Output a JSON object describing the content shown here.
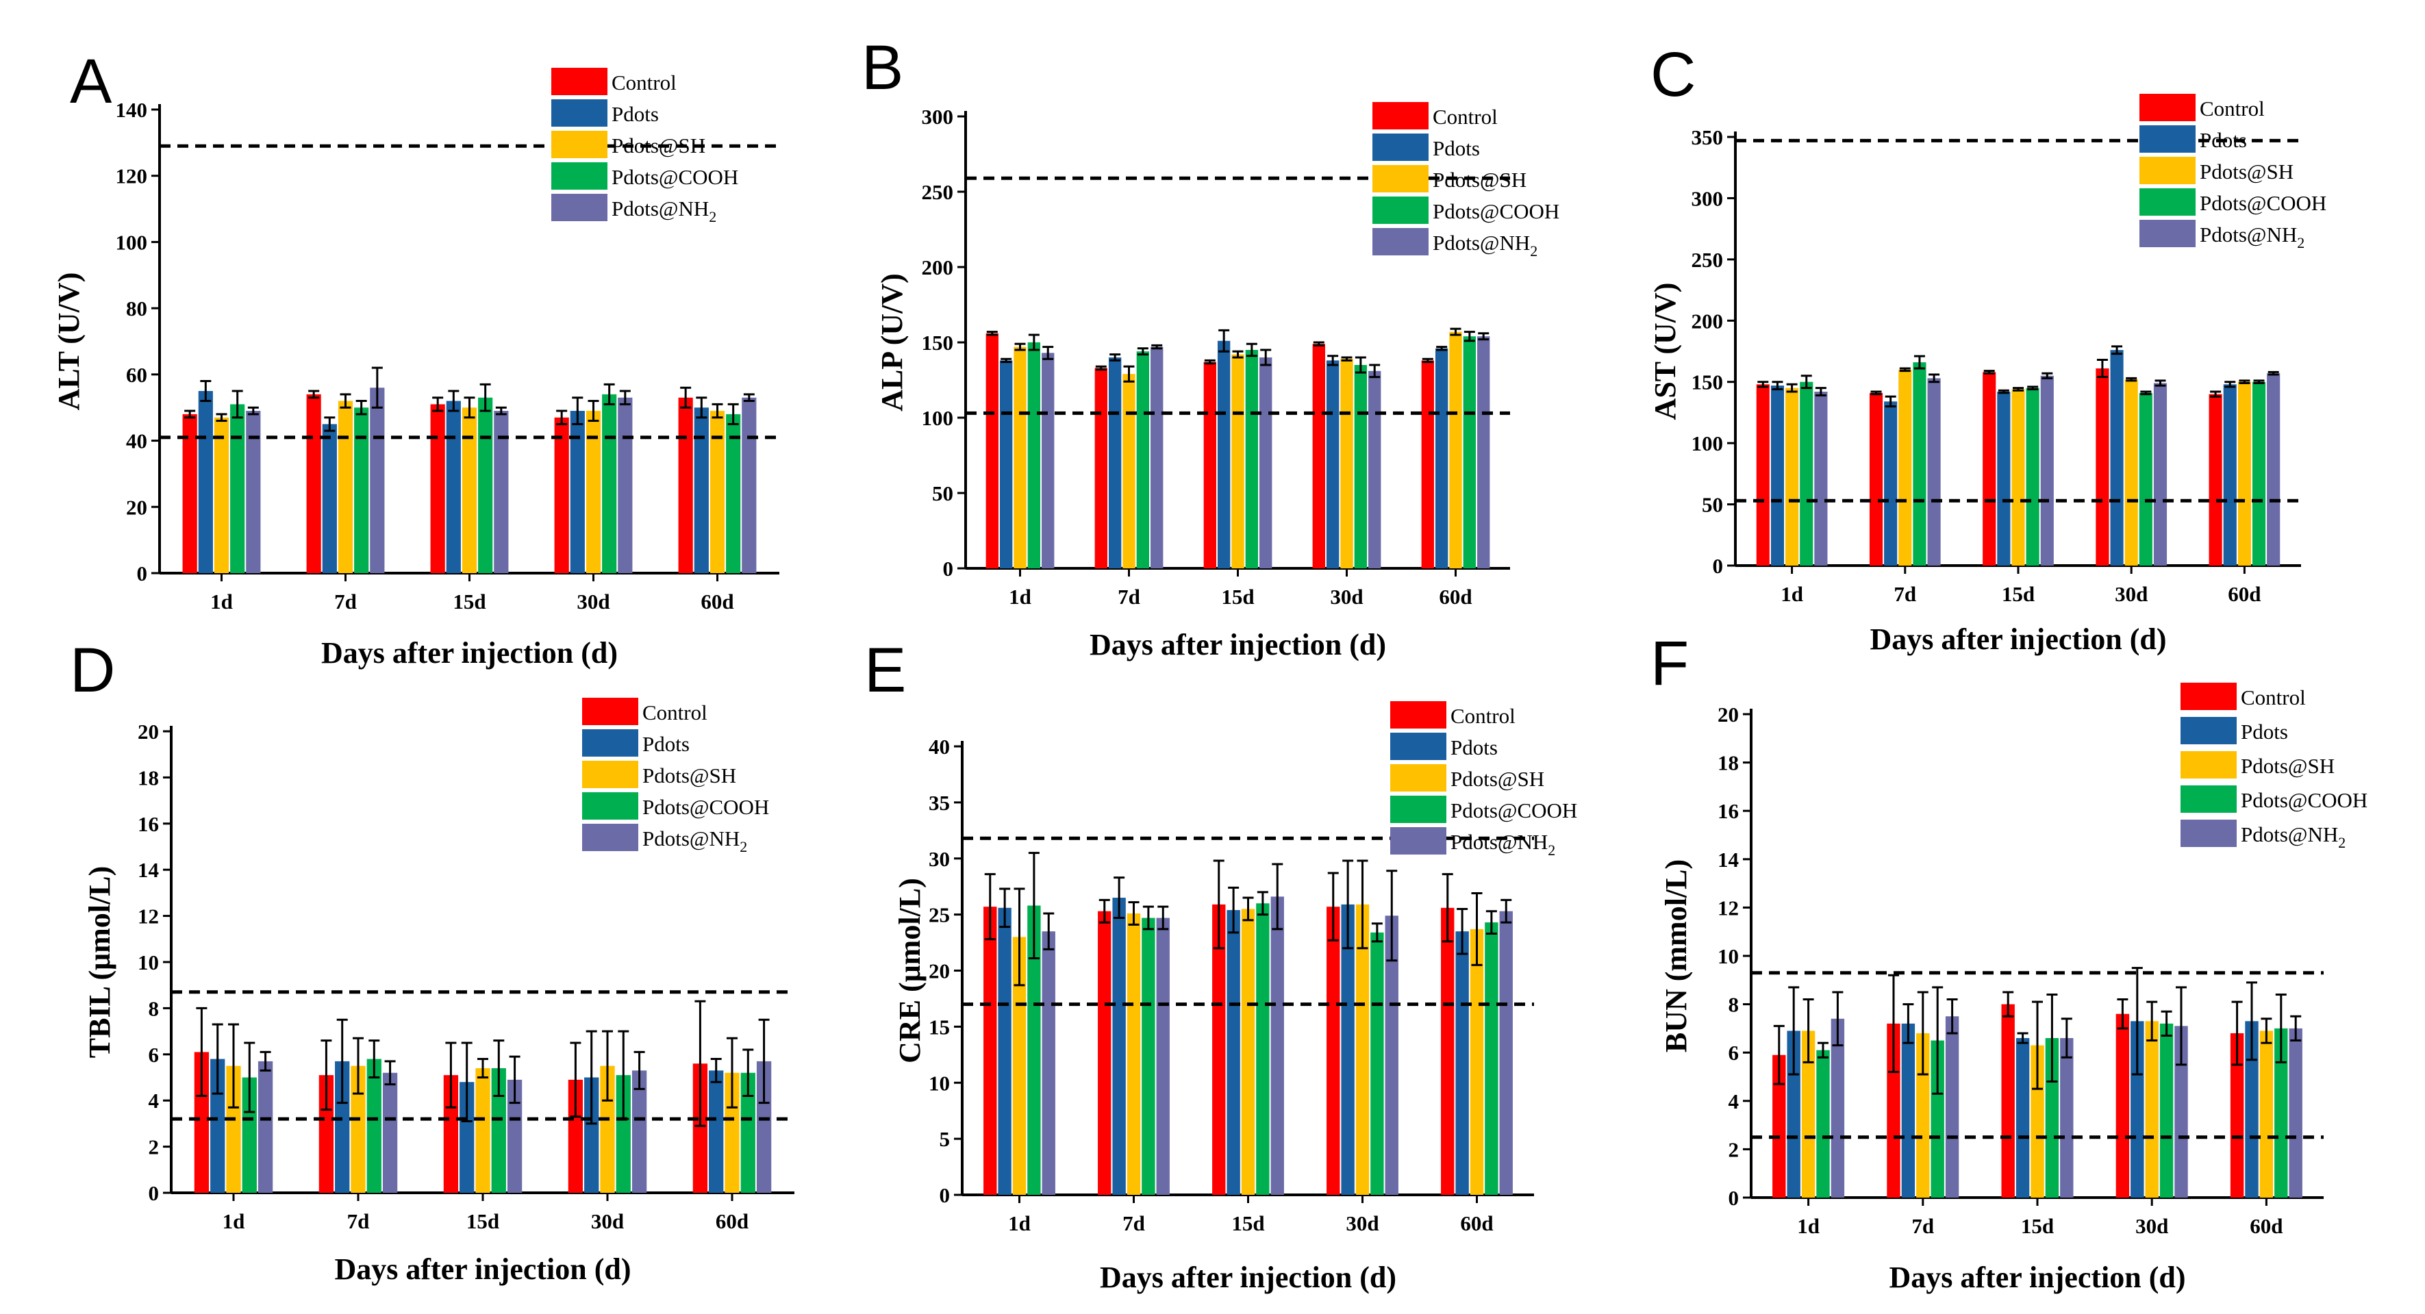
{
  "series_colors": [
    "#ff0000",
    "#1a5fa0",
    "#ffc000",
    "#00b050",
    "#6b6ba8"
  ],
  "chart_data": [
    {
      "panel": "A",
      "type": "bar",
      "categories": [
        "1d",
        "7d",
        "15d",
        "30d",
        "60d"
      ],
      "xlabel": "Days after injection (d)",
      "ylabel": "ALT (U/V)",
      "ylim": [
        0,
        140
      ],
      "yticks": [
        0,
        20,
        40,
        60,
        80,
        100,
        120,
        140
      ],
      "ref_lines": [
        129,
        41
      ],
      "legend_position": "top-right",
      "series": [
        {
          "name": "Control",
          "values": [
            48,
            54,
            51,
            47,
            53
          ],
          "errors": [
            1,
            1,
            2,
            2,
            3
          ]
        },
        {
          "name": "Pdots",
          "values": [
            55,
            45,
            52,
            49,
            50
          ],
          "errors": [
            3,
            2,
            3,
            4,
            3
          ]
        },
        {
          "name": "Pdots@SH",
          "values": [
            47,
            52,
            50,
            49,
            49
          ],
          "errors": [
            1,
            2,
            3,
            3,
            2
          ]
        },
        {
          "name": "Pdots@COOH",
          "values": [
            51,
            50,
            53,
            54,
            48
          ],
          "errors": [
            4,
            2,
            4,
            3,
            3
          ]
        },
        {
          "name": "Pdots@NH2",
          "values": [
            49,
            56,
            49,
            53,
            53
          ],
          "errors": [
            1,
            6,
            1,
            2,
            1
          ]
        }
      ]
    },
    {
      "panel": "B",
      "type": "bar",
      "categories": [
        "1d",
        "7d",
        "15d",
        "30d",
        "60d"
      ],
      "xlabel": "Days after injection (d)",
      "ylabel": "ALP (U/V)",
      "ylim": [
        0,
        300
      ],
      "yticks": [
        0,
        50,
        100,
        150,
        200,
        250,
        300
      ],
      "ref_lines": [
        259,
        103
      ],
      "legend_position": "top-right",
      "series": [
        {
          "name": "Control",
          "values": [
            156,
            133,
            137,
            149,
            138
          ],
          "errors": [
            1,
            1,
            1,
            1,
            1
          ]
        },
        {
          "name": "Pdots",
          "values": [
            138,
            140,
            151,
            138,
            146
          ],
          "errors": [
            1,
            2,
            7,
            3,
            1
          ]
        },
        {
          "name": "Pdots@SH",
          "values": [
            147,
            129,
            142,
            139,
            157
          ],
          "errors": [
            2,
            5,
            2,
            1,
            2
          ]
        },
        {
          "name": "Pdots@COOH",
          "values": [
            150,
            144,
            145,
            135,
            154
          ],
          "errors": [
            5,
            2,
            4,
            5,
            3
          ]
        },
        {
          "name": "Pdots@NH2",
          "values": [
            143,
            147,
            140,
            131,
            154
          ],
          "errors": [
            4,
            1,
            5,
            4,
            2
          ]
        }
      ]
    },
    {
      "panel": "C",
      "type": "bar",
      "categories": [
        "1d",
        "7d",
        "15d",
        "30d",
        "60d"
      ],
      "xlabel": "Days after injection (d)",
      "ylabel": "AST (U/V)",
      "ylim": [
        0,
        350
      ],
      "yticks": [
        0,
        50,
        100,
        150,
        200,
        250,
        300,
        350
      ],
      "ref_lines": [
        347,
        53
      ],
      "legend_position": "top-right",
      "series": [
        {
          "name": "Control",
          "values": [
            148,
            141,
            158,
            161,
            140
          ],
          "errors": [
            2,
            1,
            1,
            7,
            2
          ]
        },
        {
          "name": "Pdots",
          "values": [
            147,
            134,
            142,
            176,
            148
          ],
          "errors": [
            3,
            4,
            1,
            3,
            2
          ]
        },
        {
          "name": "Pdots@SH",
          "values": [
            145,
            160,
            144,
            152,
            150
          ],
          "errors": [
            3,
            1,
            1,
            1,
            1
          ]
        },
        {
          "name": "Pdots@COOH",
          "values": [
            150,
            166,
            145,
            141,
            150
          ],
          "errors": [
            5,
            5,
            1,
            1,
            1
          ]
        },
        {
          "name": "Pdots@NH2",
          "values": [
            142,
            153,
            155,
            149,
            157
          ],
          "errors": [
            3,
            3,
            2,
            2,
            1
          ]
        }
      ]
    },
    {
      "panel": "D",
      "type": "bar",
      "categories": [
        "1d",
        "7d",
        "15d",
        "30d",
        "60d"
      ],
      "xlabel": "Days after injection (d)",
      "ylabel": "TBIL (μmol/L)",
      "ylim": [
        0,
        20
      ],
      "yticks": [
        0,
        2,
        4,
        6,
        8,
        10,
        12,
        14,
        16,
        18,
        20
      ],
      "ref_lines": [
        8.7,
        3.2
      ],
      "legend_position": "top-right",
      "series": [
        {
          "name": "Control",
          "values": [
            6.1,
            5.1,
            5.1,
            4.9,
            5.6
          ],
          "errors": [
            1.9,
            1.5,
            1.4,
            1.6,
            2.7
          ]
        },
        {
          "name": "Pdots",
          "values": [
            5.8,
            5.7,
            4.8,
            5.0,
            5.3
          ],
          "errors": [
            1.5,
            1.8,
            1.7,
            2.0,
            0.5
          ]
        },
        {
          "name": "Pdots@SH",
          "values": [
            5.5,
            5.5,
            5.4,
            5.5,
            5.2
          ],
          "errors": [
            1.8,
            1.2,
            0.4,
            1.5,
            1.5
          ]
        },
        {
          "name": "Pdots@COOH",
          "values": [
            5.0,
            5.8,
            5.4,
            5.1,
            5.2
          ],
          "errors": [
            1.5,
            0.8,
            1.2,
            1.9,
            1.0
          ]
        },
        {
          "name": "Pdots@NH2",
          "values": [
            5.7,
            5.2,
            4.9,
            5.3,
            5.7
          ],
          "errors": [
            0.4,
            0.5,
            1.0,
            0.8,
            1.8
          ]
        }
      ]
    },
    {
      "panel": "E",
      "type": "bar",
      "categories": [
        "1d",
        "7d",
        "15d",
        "30d",
        "60d"
      ],
      "xlabel": "Days after injection (d)",
      "ylabel": "CRE (μmol/L)",
      "ylim": [
        0,
        40
      ],
      "yticks": [
        0,
        5,
        10,
        15,
        20,
        25,
        30,
        35,
        40
      ],
      "ref_lines": [
        31.8,
        17
      ],
      "legend_position": "top-right",
      "series": [
        {
          "name": "Control",
          "values": [
            25.7,
            25.3,
            25.9,
            25.7,
            25.6
          ],
          "errors": [
            2.9,
            1.0,
            3.9,
            3.0,
            3.0
          ]
        },
        {
          "name": "Pdots",
          "values": [
            25.6,
            26.5,
            25.4,
            25.9,
            23.5
          ],
          "errors": [
            1.7,
            1.8,
            2.0,
            3.9,
            2.0
          ]
        },
        {
          "name": "Pdots@SH",
          "values": [
            23.0,
            25.1,
            25.5,
            25.9,
            23.7
          ],
          "errors": [
            4.3,
            1.0,
            1.0,
            3.9,
            3.2
          ]
        },
        {
          "name": "Pdots@COOH",
          "values": [
            25.8,
            24.7,
            26.0,
            23.4,
            24.3
          ],
          "errors": [
            4.7,
            1.0,
            1.0,
            0.8,
            1.0
          ]
        },
        {
          "name": "Pdots@NH2",
          "values": [
            23.5,
            24.7,
            26.6,
            24.9,
            25.3
          ],
          "errors": [
            1.6,
            1.0,
            2.9,
            4.0,
            1.0
          ]
        }
      ]
    },
    {
      "panel": "F",
      "type": "bar",
      "categories": [
        "1d",
        "7d",
        "15d",
        "30d",
        "60d"
      ],
      "xlabel": "Days after injection (d)",
      "ylabel": "BUN (mmol/L)",
      "ylim": [
        0,
        20
      ],
      "yticks": [
        0,
        2,
        4,
        6,
        8,
        10,
        12,
        14,
        16,
        18,
        20
      ],
      "ref_lines": [
        9.3,
        2.5
      ],
      "legend_position": "top-right",
      "series": [
        {
          "name": "Control",
          "values": [
            5.9,
            7.2,
            8.0,
            7.6,
            6.8
          ],
          "errors": [
            1.2,
            2.0,
            0.5,
            0.6,
            1.3
          ]
        },
        {
          "name": "Pdots",
          "values": [
            6.9,
            7.2,
            6.6,
            7.3,
            7.3
          ],
          "errors": [
            1.8,
            0.8,
            0.2,
            2.2,
            1.6
          ]
        },
        {
          "name": "Pdots@SH",
          "values": [
            6.9,
            6.8,
            6.3,
            7.3,
            6.9
          ],
          "errors": [
            1.3,
            1.7,
            1.8,
            0.8,
            0.5
          ]
        },
        {
          "name": "Pdots@COOH",
          "values": [
            6.1,
            6.5,
            6.6,
            7.2,
            7.0
          ],
          "errors": [
            0.3,
            2.2,
            1.8,
            0.5,
            1.4
          ]
        },
        {
          "name": "Pdots@NH2",
          "values": [
            7.4,
            7.5,
            6.6,
            7.1,
            7.0
          ],
          "errors": [
            1.1,
            0.7,
            0.8,
            1.6,
            0.5
          ]
        }
      ]
    }
  ]
}
